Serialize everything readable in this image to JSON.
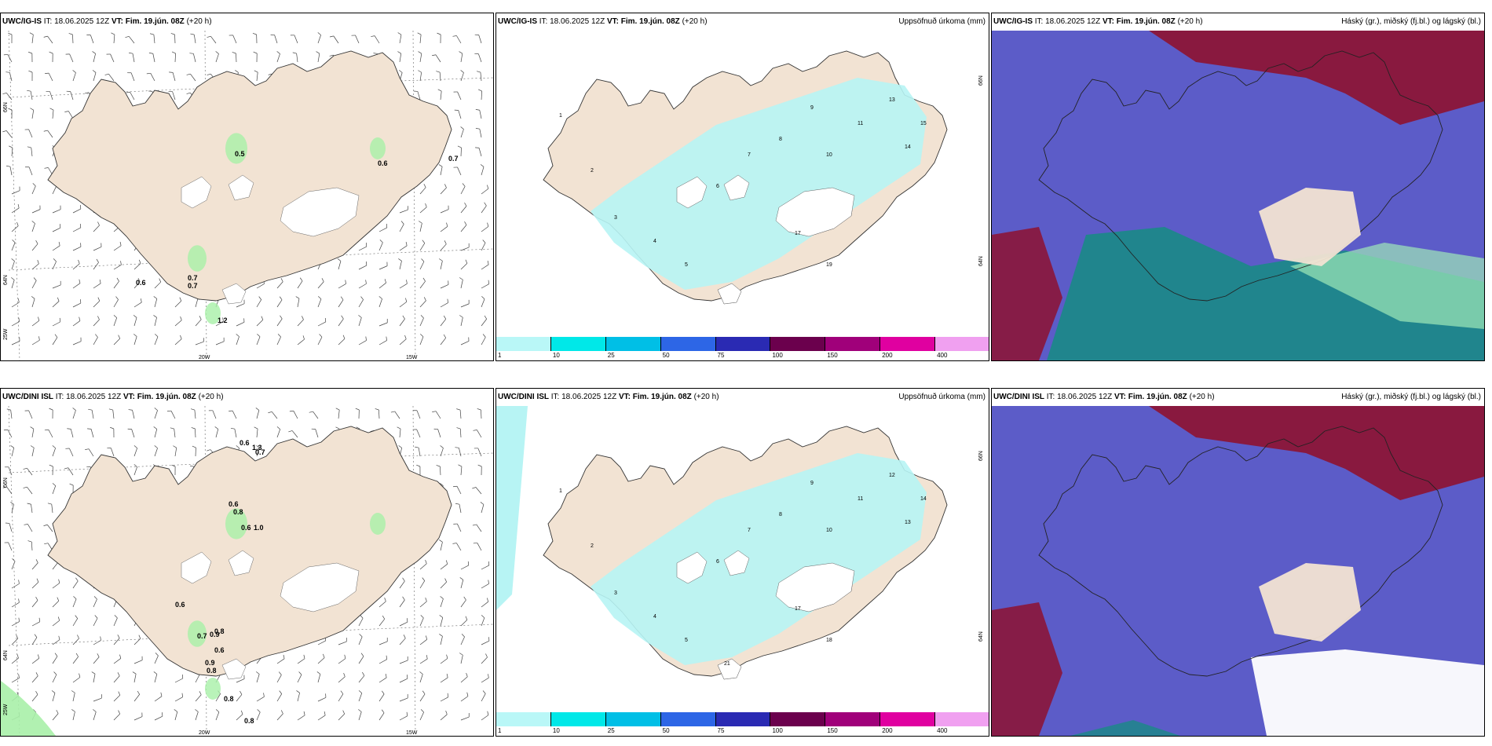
{
  "panels": [
    {
      "model": "UWC/IG-IS",
      "it_label": "IT:",
      "it_value": "18.06.2025 12Z",
      "vt_label": "VT:",
      "vt_value": "Fim. 19.jún. 08Z",
      "lead": "(+20 h)",
      "title_right": "",
      "type": "wind",
      "values": [
        "0.5",
        "0.6",
        "0.7",
        "0.6",
        "0.7",
        "0.7",
        "1.2"
      ],
      "axis": {
        "lat1": "66N",
        "lat2": "64N",
        "lat3": "25W",
        "lon1": "20W",
        "lon2": "15W"
      }
    },
    {
      "model": "UWC/IG-IS",
      "it_label": "IT:",
      "it_value": "18.06.2025 12Z",
      "vt_label": "VT:",
      "vt_value": "Fim. 19.jún. 08Z",
      "lead": "(+20 h)",
      "title_right": "Uppsöfnuð úrkoma (mm)",
      "type": "precip",
      "values": [
        "1",
        "2",
        "3",
        "4",
        "5",
        "6",
        "7",
        "8",
        "9",
        "10",
        "11",
        "13",
        "14",
        "15",
        "17",
        "19"
      ],
      "axis": {
        "lat1": "66N",
        "lat2": "64N"
      }
    },
    {
      "model": "UWC/IG-IS",
      "it_label": "IT:",
      "it_value": "18.06.2025 12Z",
      "vt_label": "VT:",
      "vt_value": "Fim. 19.jún. 08Z",
      "lead": "(+20 h)",
      "title_right": "Háský (gr.), miðský (fj.bl.) og lágský (bl.)",
      "type": "cloud"
    },
    {
      "model": "UWC/DINI ISL",
      "it_label": "IT:",
      "it_value": "18.06.2025 12Z",
      "vt_label": "VT:",
      "vt_value": "Fim. 19.jún. 08Z",
      "lead": "(+20 h)",
      "title_right": "",
      "type": "wind",
      "values": [
        "0.6",
        "1.3",
        "0.7",
        "0.6",
        "0.8",
        "0.6",
        "1.0",
        "0.6",
        "0.7",
        "0.9",
        "0.8",
        "0.6",
        "0.9",
        "0.8",
        "0.8",
        "0.8"
      ],
      "axis": {
        "lat1": "66N",
        "lat2": "64N",
        "lat3": "25W",
        "lon1": "20W",
        "lon2": "15W"
      }
    },
    {
      "model": "UWC/DINI ISL",
      "it_label": "IT:",
      "it_value": "18.06.2025 12Z",
      "vt_label": "VT:",
      "vt_value": "Fim. 19.jún. 08Z",
      "lead": "(+20 h)",
      "title_right": "Uppsöfnuð úrkoma (mm)",
      "type": "precip",
      "values": [
        "1",
        "2",
        "3",
        "4",
        "5",
        "6",
        "7",
        "8",
        "9",
        "10",
        "11",
        "12",
        "13",
        "14",
        "17",
        "18",
        "21"
      ],
      "axis": {
        "lat1": "66N",
        "lat2": "64N"
      }
    },
    {
      "model": "UWC/DINI ISL",
      "it_label": "IT:",
      "it_value": "18.06.2025 12Z",
      "vt_label": "VT:",
      "vt_value": "Fim. 19.jún. 08Z",
      "lead": "(+20 h)",
      "title_right": "Háský (gr.), miðský (fj.bl.) og lágský (bl.)",
      "type": "cloud"
    }
  ],
  "colorbar": {
    "labels": [
      "1",
      "10",
      "25",
      "50",
      "75",
      "100",
      "150",
      "200",
      "400"
    ],
    "colors": [
      "#b9f7f7",
      "#00e8e8",
      "#00bfe6",
      "#2d66e6",
      "#2a2ab3",
      "#6b004d",
      "#a0007a",
      "#e000a0",
      "#f0a0f0"
    ]
  },
  "colors": {
    "land": "#f2e3d3",
    "precip_light": "#b7f4f4",
    "green": "#a8f0a8",
    "cloud_high": "#8b1538",
    "cloud_mid": "#5c5cc8",
    "cloud_low": "#1a8a86"
  }
}
